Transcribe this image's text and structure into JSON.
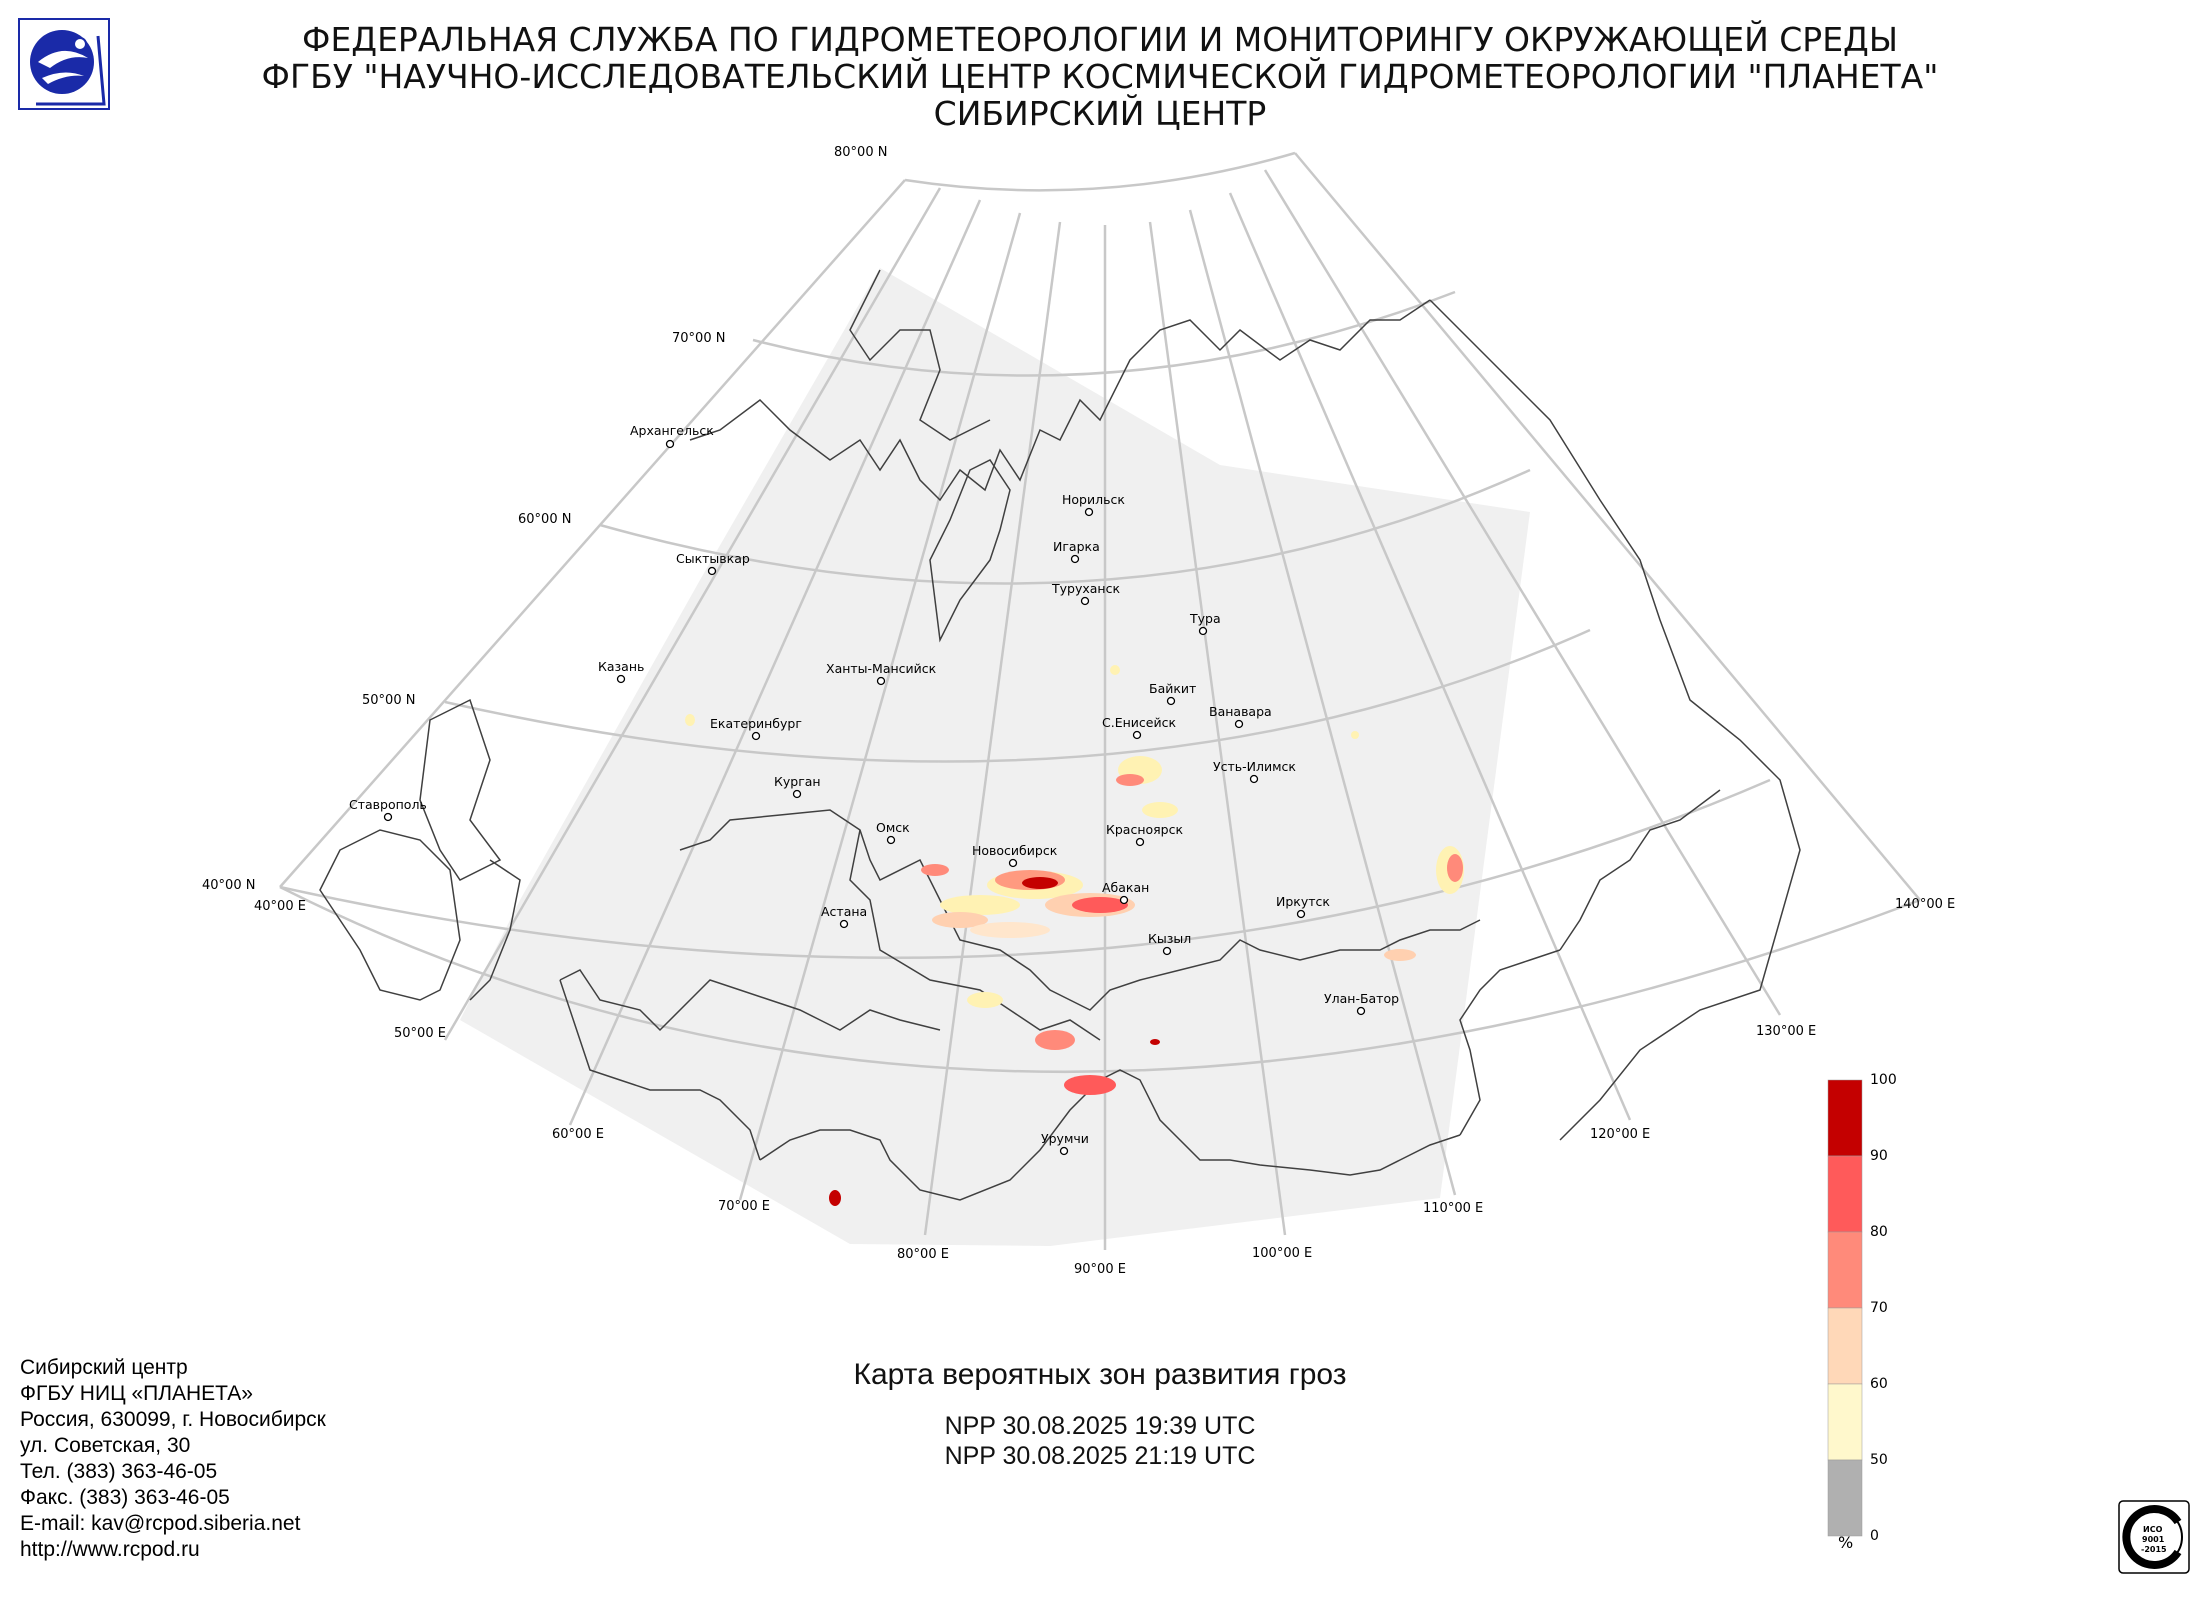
{
  "header": {
    "line1": "ФЕДЕРАЛЬНАЯ СЛУЖБА ПО ГИДРОМЕТЕОРОЛОГИИ И МОНИТОРИНГУ ОКРУЖАЮЩЕЙ СРЕДЫ",
    "line2": "ФГБУ \"НАУЧНО-ИССЛЕДОВАТЕЛЬСКИЙ ЦЕНТР КОСМИЧЕСКОЙ ГИДРОМЕТЕОРОЛОГИИ \"ПЛАНЕТА\"",
    "line3": "СИБИРСКИЙ ЦЕНТР"
  },
  "logo": {
    "icon": "planeta-logo-icon",
    "color": "#1a2aa8"
  },
  "map": {
    "graticule_color": "#c8c8c8",
    "coverage_color": "#f0f0f0",
    "lat_labels": [
      "80°00 N",
      "70°00 N",
      "60°00 N",
      "50°00 N",
      "40°00 N"
    ],
    "lon_labels": [
      "40°00 E",
      "50°00 E",
      "60°00 E",
      "70°00 E",
      "80°00 E",
      "90°00 E",
      "100°00 E",
      "110°00 E",
      "120°00 E",
      "130°00 E",
      "140°00 E"
    ],
    "cities": [
      {
        "name": "Архангельск"
      },
      {
        "name": "Норильск"
      },
      {
        "name": "Игарка"
      },
      {
        "name": "Туруханск"
      },
      {
        "name": "Тура"
      },
      {
        "name": "Сыктывкар"
      },
      {
        "name": "Казань"
      },
      {
        "name": "Ханты-Мансийск"
      },
      {
        "name": "Байкит"
      },
      {
        "name": "Ванавара"
      },
      {
        "name": "Екатеринбург"
      },
      {
        "name": "С.Енисейск"
      },
      {
        "name": "Усть-Илимск"
      },
      {
        "name": "Курган"
      },
      {
        "name": "Ставрополь"
      },
      {
        "name": "Омск"
      },
      {
        "name": "Красноярск"
      },
      {
        "name": "Новосибирск"
      },
      {
        "name": "Абакан"
      },
      {
        "name": "Иркутск"
      },
      {
        "name": "Астана"
      },
      {
        "name": "Кызыл"
      },
      {
        "name": "Улан-Батор"
      },
      {
        "name": "Урумчи"
      }
    ]
  },
  "footer": {
    "contact_lines": [
      "Сибирский центр",
      "ФГБУ НИЦ «ПЛАНЕТА»",
      "Россия, 630099, г. Новосибирск",
      "ул. Советская, 30",
      "Тел. (383) 363-46-05",
      "Факс. (383) 363-46-05",
      "E-mail: kav@rcpod.siberia.net",
      "http://www.rcpod.ru"
    ],
    "map_title": "Карта вероятных зон развития гроз",
    "pass1": "NPP 30.08.2025  19:39 UTC",
    "pass2": "NPP 30.08.2025  21:19 UTC"
  },
  "legend": {
    "unit": "%",
    "ticks": [
      "100",
      "90",
      "80",
      "70",
      "60",
      "50",
      "0"
    ],
    "colors": [
      "#c40000",
      "#ff5a5a",
      "#ff8a7a",
      "#ffd8b8",
      "#fff8cc",
      "#b0b0b0"
    ]
  },
  "iso_stamp": {
    "icon": "iso-certification-stamp-icon",
    "text1": "ИСО",
    "text2": "9001",
    "text3": "-2015"
  }
}
